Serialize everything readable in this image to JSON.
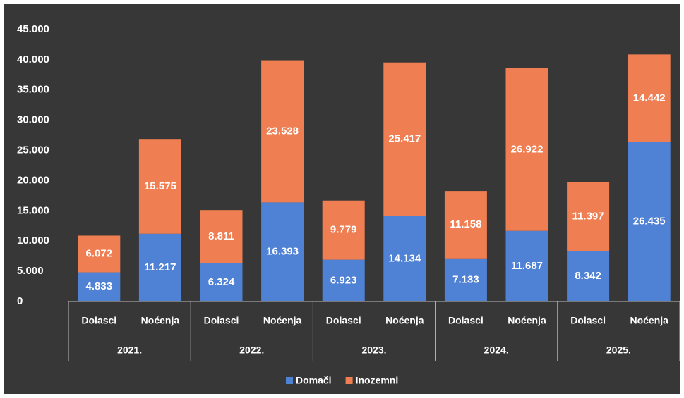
{
  "chart_data": {
    "type": "stacked_bar",
    "categories": [
      "Dolasci",
      "Noćenja",
      "Dolasci",
      "Noćenja",
      "Dolasci",
      "Noćenja",
      "Dolasci",
      "Noćenja",
      "Dolasci",
      "Noćenja"
    ],
    "groups": [
      "2021.",
      "2022.",
      "2023.",
      "2024.",
      "2025."
    ],
    "series": [
      {
        "name": "Domači",
        "color": "#4f81d4",
        "values": [
          4833,
          11217,
          6324,
          16393,
          6923,
          14134,
          7133,
          11687,
          8342,
          26435
        ],
        "value_labels": [
          "4.833",
          "11.217",
          "6.324",
          "16.393",
          "6.923",
          "14.134",
          "7.133",
          "11.687",
          "8.342",
          "26.435"
        ]
      },
      {
        "name": "Inozemni",
        "color": "#ef7e52",
        "values": [
          6072,
          15575,
          8811,
          23528,
          9779,
          25417,
          11158,
          26922,
          11397,
          14442
        ],
        "value_labels": [
          "6.072",
          "15.575",
          "8.811",
          "23.528",
          "9.779",
          "25.417",
          "11.158",
          "26.922",
          "11.397",
          "14.442"
        ]
      }
    ],
    "ylim": [
      0,
      45000
    ],
    "yticks": [
      0,
      {
        "value": 5000,
        "label": "5.000"
      },
      {
        "value": 10000,
        "label": "10.000"
      },
      {
        "value": 15000,
        "label": "15.000"
      },
      {
        "value": 20000,
        "label": "20.000"
      },
      {
        "value": 25000,
        "label": "25.000"
      },
      {
        "value": 30000,
        "label": "30.000"
      },
      {
        "value": 35000,
        "label": "35.000"
      },
      {
        "value": 40000,
        "label": "40.000"
      },
      {
        "value": 45000,
        "label": "45.000"
      }
    ],
    "grid": false,
    "legend": "bottom"
  }
}
